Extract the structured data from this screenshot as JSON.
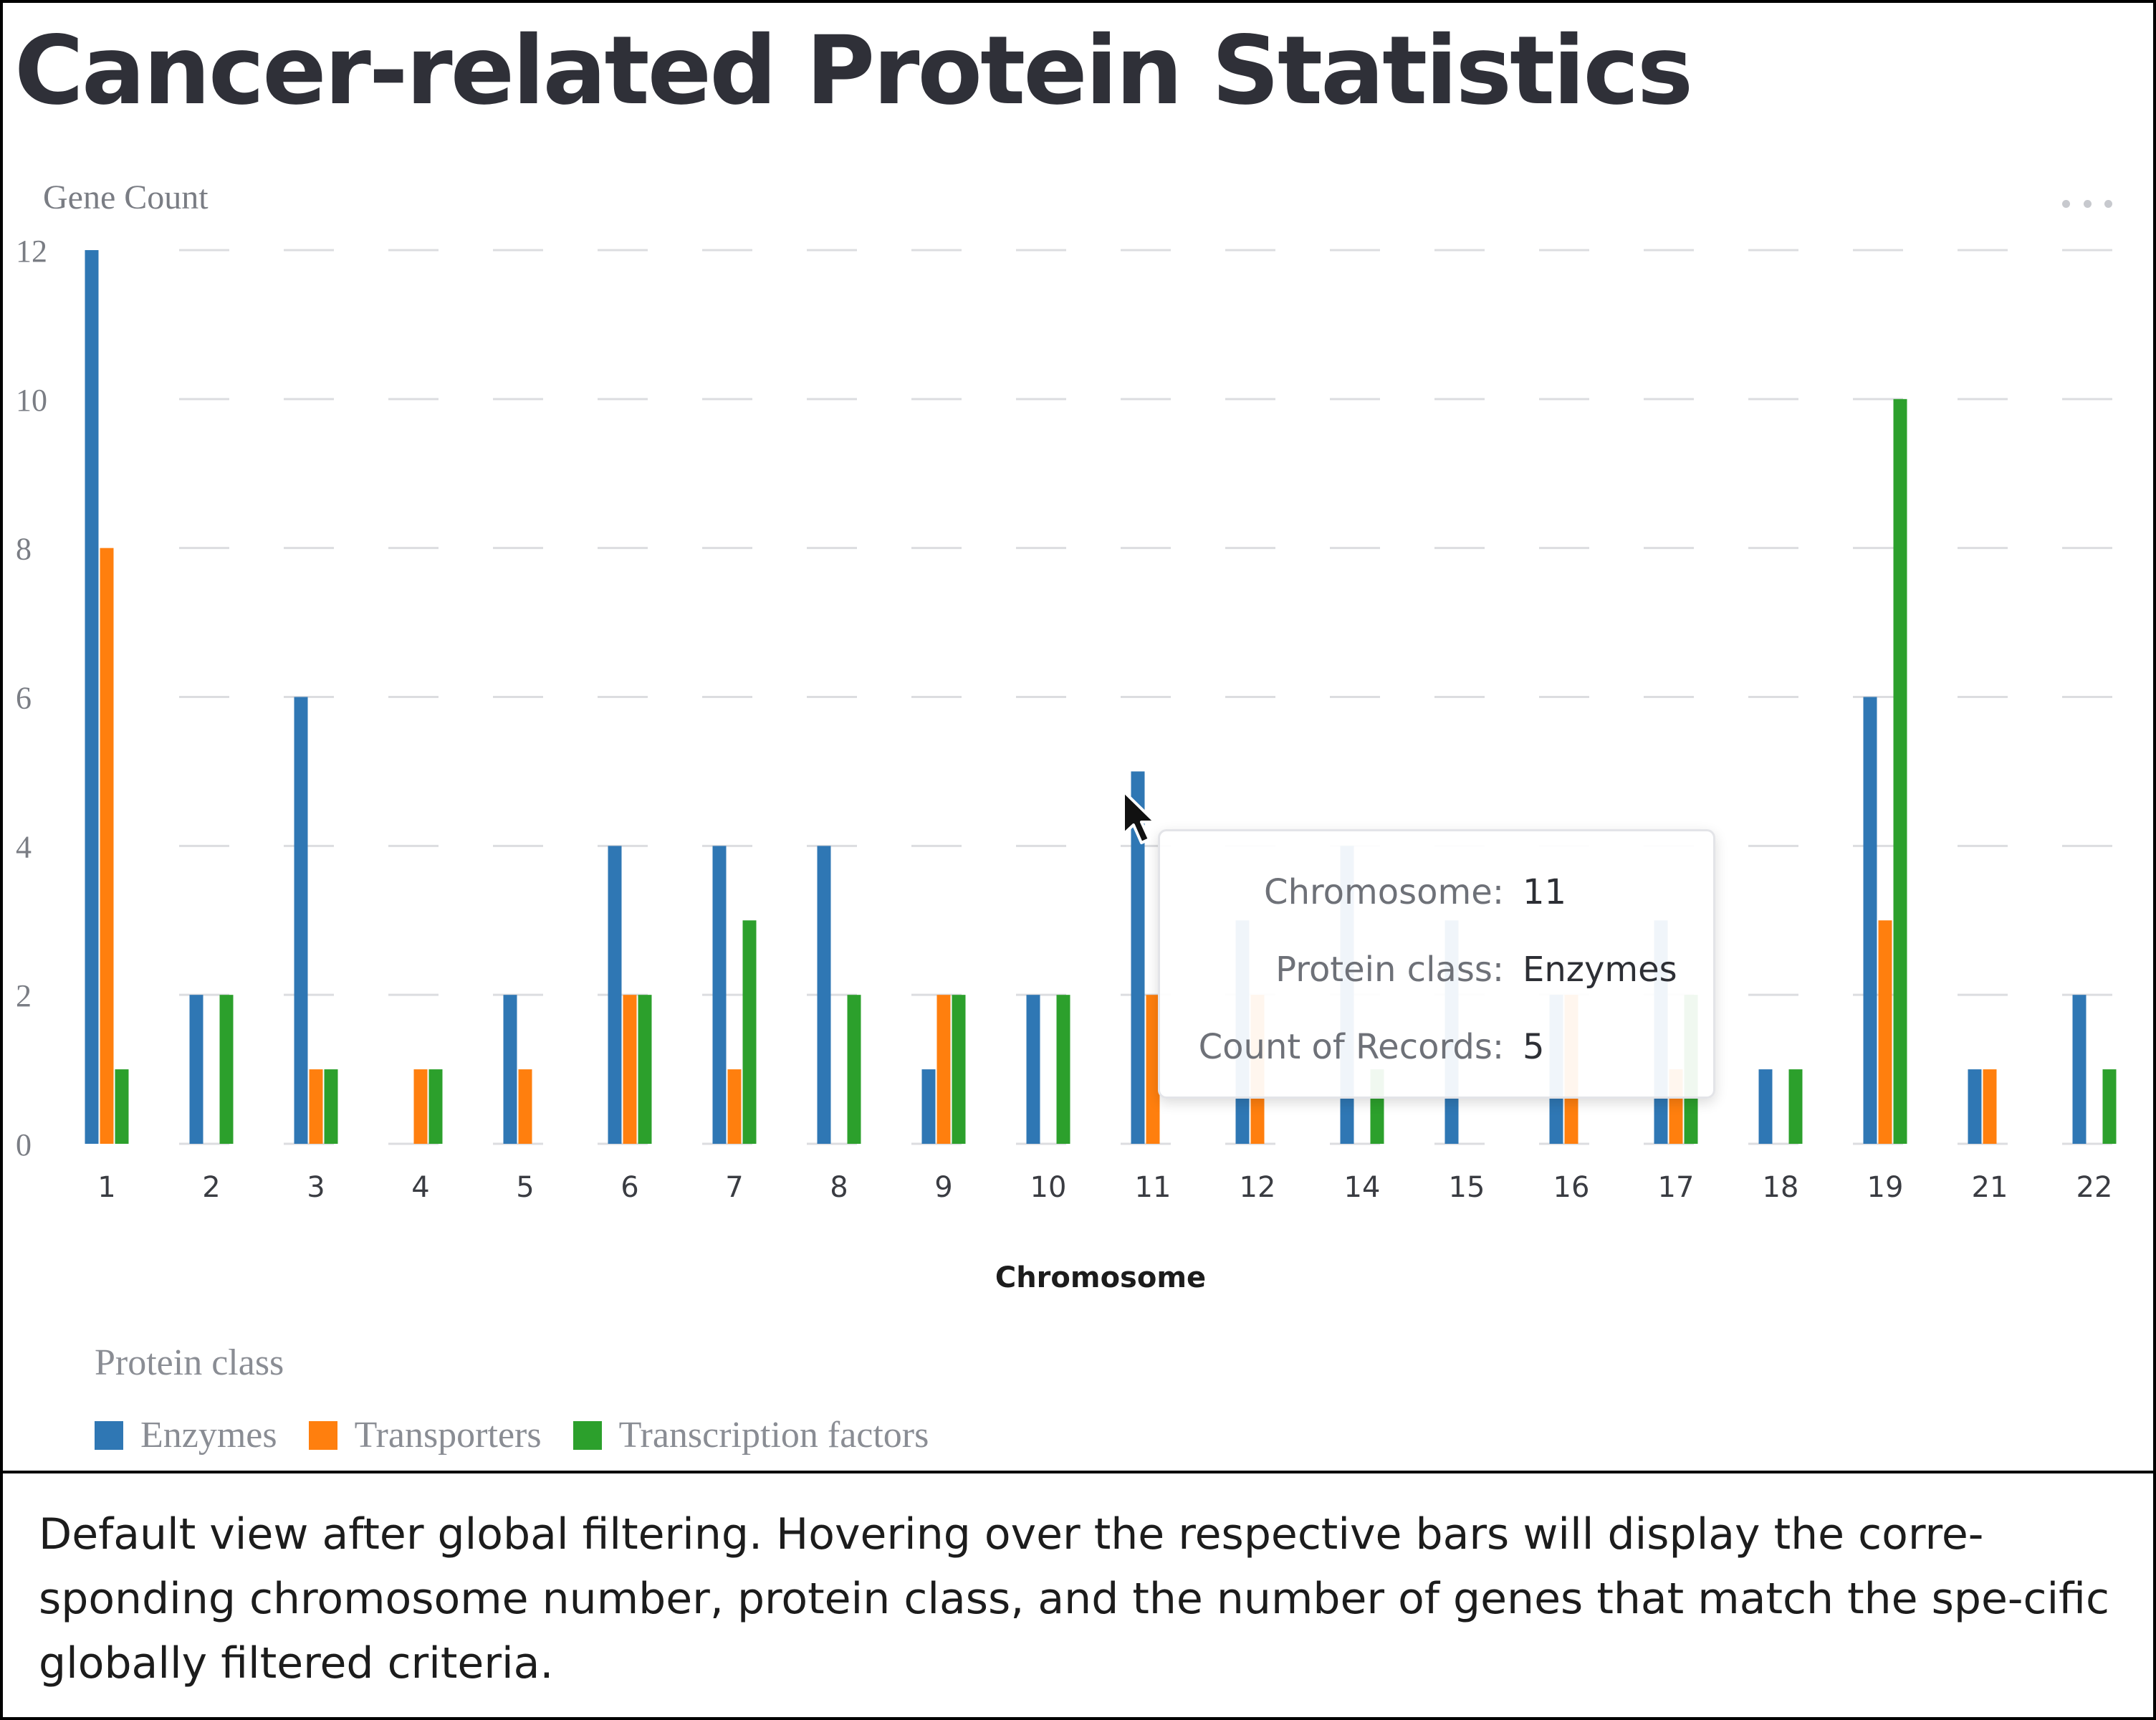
{
  "title": "Cancer-related Protein Statistics",
  "caption": "Default view after global filtering. Hovering over the respective bars will display the corre-sponding chromosome number, protein class, and the number of genes that match the spe-cific globally filtered criteria.",
  "menu": {
    "icon": "more-horizontal-icon"
  },
  "colors": {
    "Enzymes": "#2f77b4",
    "Transporters": "#ff7f0e",
    "Transcription factors": "#2ca02c",
    "grid": "#dcdde0"
  },
  "tooltip": {
    "rows": [
      {
        "label": "Chromosome:",
        "value": "11"
      },
      {
        "label": "Protein class:",
        "value": "Enzymes"
      },
      {
        "label": "Count of Records:",
        "value": "5"
      }
    ]
  },
  "chart_data": {
    "type": "bar",
    "title": "Cancer-related Protein Statistics",
    "xlabel": "Chromosome",
    "ylabel": "Gene Count",
    "ylim": [
      0,
      12
    ],
    "yticks": [
      0,
      2,
      4,
      6,
      8,
      10,
      12
    ],
    "grid": true,
    "legend_title": "Protein class",
    "legend_placement": "bottom-left",
    "categories": [
      "1",
      "2",
      "3",
      "4",
      "5",
      "6",
      "7",
      "8",
      "9",
      "10",
      "11",
      "12",
      "14",
      "15",
      "16",
      "17",
      "18",
      "19",
      "21",
      "22"
    ],
    "series": [
      {
        "name": "Enzymes",
        "values": [
          12,
          2,
          6,
          0,
          2,
          4,
          4,
          4,
          1,
          2,
          5,
          3,
          4,
          3,
          2,
          3,
          1,
          6,
          1,
          2
        ]
      },
      {
        "name": "Transporters",
        "values": [
          8,
          0,
          1,
          1,
          1,
          2,
          1,
          0,
          2,
          0,
          2,
          2,
          0,
          0,
          2,
          1,
          0,
          3,
          1,
          0
        ]
      },
      {
        "name": "Transcription factors",
        "values": [
          1,
          2,
          1,
          1,
          0,
          2,
          3,
          2,
          2,
          2,
          0,
          0,
          1,
          0,
          0,
          2,
          1,
          10,
          0,
          1
        ]
      }
    ]
  }
}
